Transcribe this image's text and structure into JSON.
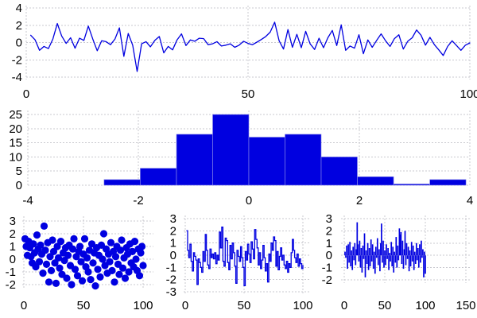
{
  "figure": {
    "title": "",
    "background": "#ffffff",
    "colors": {
      "series": "#0000e0",
      "grid": "#c9c9cf",
      "text": "#000000"
    },
    "panels": [
      "noise",
      "histogram",
      "scatter",
      "steps",
      "impulses"
    ]
  },
  "chart_data": [
    {
      "id": "noise",
      "type": "line",
      "title": "",
      "x_start": 1,
      "x_step": 1,
      "values": [
        0.85,
        0.3,
        -0.9,
        -0.45,
        -0.7,
        0.4,
        2.2,
        0.75,
        -0.1,
        0.55,
        -0.65,
        0.5,
        0.25,
        1.9,
        0.4,
        -0.95,
        0.2,
        0.1,
        -0.25,
        0.4,
        1.7,
        -1.6,
        1.05,
        -0.3,
        -3.35,
        -0.15,
        0.1,
        -0.5,
        0.25,
        0.7,
        -1.2,
        -0.45,
        -0.85,
        0.3,
        1.0,
        -0.35,
        0.3,
        0.15,
        0.5,
        0.45,
        -0.25,
        -0.15,
        0.1,
        -0.4,
        -0.3,
        -0.15,
        -0.55,
        -0.3,
        0.15,
        -0.1,
        -0.25,
        0.05,
        0.35,
        0.7,
        1.2,
        2.35,
        0.2,
        -0.75,
        1.5,
        -0.55,
        0.95,
        -0.6,
        1.3,
        -0.15,
        -0.8,
        0.5,
        -0.6,
        0.55,
        1.4,
        -0.35,
        2.05,
        -0.9,
        -0.4,
        -0.65,
        0.9,
        -1.3,
        0.3,
        -0.55,
        0.25,
        1.0,
        0.2,
        -0.45,
        0.45,
        0.9,
        -0.75,
        0.15,
        0.55,
        1.45,
        0.85,
        -0.3,
        0.6,
        -0.25,
        -0.85,
        -1.5,
        -0.45,
        0.2,
        -0.35,
        -0.9,
        -0.3,
        -0.05
      ],
      "xlim": [
        0,
        100
      ],
      "ylim": [
        -4,
        4
      ],
      "xticks": [
        0,
        50,
        100
      ],
      "yticks": [
        -4,
        -2,
        0,
        2,
        4
      ],
      "grid": true,
      "legend": false
    },
    {
      "id": "histogram",
      "type": "bar",
      "title": "",
      "bin_start": -2.62,
      "bin_width": 0.655,
      "counts": [
        2,
        6,
        18,
        25,
        17,
        18,
        10,
        3,
        0,
        2
      ],
      "xlim": [
        -4,
        4
      ],
      "ylim": [
        0,
        26
      ],
      "xticks": [
        -4,
        -2,
        0,
        2,
        4
      ],
      "yticks": [
        0,
        5,
        10,
        15,
        20,
        25
      ],
      "grid": true,
      "legend": false
    },
    {
      "id": "scatter",
      "type": "scatter",
      "title": "",
      "x_start": 1,
      "x_step": 1,
      "values": [
        1.6,
        1.0,
        0.3,
        1.4,
        0.9,
        0.2,
        -0.3,
        1.2,
        0.5,
        -0.6,
        1.9,
        0.8,
        -0.2,
        1.1,
        0.4,
        -1.1,
        2.6,
        0.7,
        -0.4,
        1.3,
        -1.8,
        0.2,
        -0.9,
        1.5,
        0.6,
        -0.3,
        -1.9,
        1.0,
        0.1,
        -0.7,
        1.4,
        -1.2,
        0.5,
        -0.1,
        0.9,
        -1.5,
        0.3,
        1.1,
        -0.5,
        -2.0,
        0.8,
        1.6,
        -0.8,
        0.2,
        -1.3,
        0.6,
        1.0,
        -0.2,
        -1.7,
        0.4,
        1.6,
        -0.6,
        0.1,
        -1.0,
        0.7,
        -1.6,
        1.2,
        -0.3,
        0.5,
        -2.1,
        0.9,
        -0.8,
        0.3,
        -1.4,
        1.1,
        0.0,
        2.0,
        -0.5,
        0.8,
        -1.1,
        0.4,
        -0.2,
        1.3,
        -0.9,
        0.6,
        -1.8,
        0.2,
        1.0,
        -0.4,
        -1.2,
        0.7,
        1.5,
        -0.7,
        0.1,
        -1.5,
        0.9,
        0.4,
        -1.0,
        1.2,
        -0.3,
        0.6,
        -0.6,
        1.4,
        0.0,
        -0.9,
        0.8,
        -1.3,
        0.5,
        1.0,
        -0.5
      ],
      "xlim": [
        0,
        100
      ],
      "ylim": [
        -2.5,
        3.4
      ],
      "xticks": [
        0,
        50,
        100
      ],
      "yticks": [
        -2,
        -1,
        0,
        1,
        2,
        3
      ],
      "grid": true,
      "legend": false
    },
    {
      "id": "steps",
      "type": "line_steps",
      "title": "",
      "x_start": 1,
      "x_step": 1,
      "values": [
        2.0,
        0.4,
        -0.2,
        0.9,
        -0.5,
        -1.3,
        0.2,
        -0.1,
        -0.4,
        -2.4,
        -0.3,
        -0.6,
        -1.0,
        -1.4,
        0.3,
        -0.5,
        1.7,
        0.4,
        -0.8,
        -1.1,
        0.5,
        -0.2,
        0.1,
        -0.3,
        0.2,
        -0.7,
        0.0,
        -0.4,
        1.9,
        0.6,
        2.3,
        -0.5,
        -0.9,
        1.4,
        1.2,
        -0.6,
        -1.2,
        0.8,
        -0.3,
        1.0,
        0.2,
        -0.9,
        -2.3,
        0.4,
        -0.1,
        -0.5,
        0.7,
        -0.2,
        -1.0,
        -2.5,
        0.3,
        -0.4,
        0.9,
        0.1,
        -0.6,
        1.1,
        0.5,
        -0.3,
        2.1,
        1.3,
        0.6,
        -0.8,
        0.2,
        -1.1,
        -0.4,
        0.8,
        -0.2,
        -1.3,
        -0.7,
        -2.2,
        0.1,
        -0.5,
        1.0,
        0.4,
        1.5,
        1.2,
        -0.9,
        0.3,
        -1.2,
        -0.1,
        0.6,
        -0.4,
        0.0,
        -0.8,
        -1.1,
        -0.5,
        -1.4,
        -0.7,
        -1.0,
        0.2,
        1.3,
        0.4,
        -0.2,
        -0.6,
        0.1,
        -0.9,
        -0.3,
        -0.7,
        -1.1,
        -0.8
      ],
      "xlim": [
        0,
        100
      ],
      "ylim": [
        -3.3,
        3.3
      ],
      "xticks": [
        0,
        50,
        100
      ],
      "yticks": [
        -3,
        -2,
        -1,
        0,
        1,
        2,
        3
      ],
      "grid": true,
      "legend": false
    },
    {
      "id": "impulses",
      "type": "impulses",
      "title": "",
      "x_start": 1,
      "x_step": 1,
      "values": [
        0.3,
        -0.2,
        0.8,
        -1.1,
        0.9,
        -0.6,
        1.1,
        -0.9,
        0.4,
        -1.2,
        0.7,
        -0.4,
        1.0,
        -0.8,
        0.5,
        2.7,
        0.9,
        -0.5,
        1.2,
        -1.0,
        0.6,
        -1.4,
        0.8,
        -0.3,
        1.8,
        -1.8,
        0.4,
        -0.7,
        1.0,
        -1.2,
        0.6,
        -0.9,
        1.3,
        -0.5,
        0.9,
        -1.1,
        0.3,
        -1.5,
        0.7,
        -0.2,
        1.4,
        -0.8,
        0.5,
        -1.3,
        1.0,
        2.6,
        -0.6,
        1.2,
        -1.0,
        0.4,
        -0.8,
        0.9,
        -0.3,
        0.6,
        -1.2,
        0.2,
        -0.5,
        1.1,
        -0.9,
        0.7,
        -1.4,
        0.3,
        -0.6,
        1.5,
        -1.0,
        0.8,
        -0.4,
        2.2,
        1.7,
        1.9,
        -0.7,
        1.2,
        -1.1,
        0.5,
        2.0,
        -0.8,
        1.0,
        -0.3,
        0.7,
        -1.3,
        0.4,
        -0.9,
        1.1,
        -0.5,
        0.8,
        -1.2,
        0.3,
        -0.7,
        1.0,
        -0.4,
        0.6,
        -1.0,
        0.9,
        -0.6,
        1.2,
        -0.2,
        0.5,
        -1.8,
        0.3,
        -1.5
      ],
      "xlim": [
        0,
        150
      ],
      "ylim": [
        -2.3,
        3.3
      ],
      "xticks": [
        0,
        50,
        100,
        150
      ],
      "yticks": [
        -2,
        -1,
        0,
        1,
        2,
        3
      ],
      "grid": true,
      "legend": false
    }
  ]
}
